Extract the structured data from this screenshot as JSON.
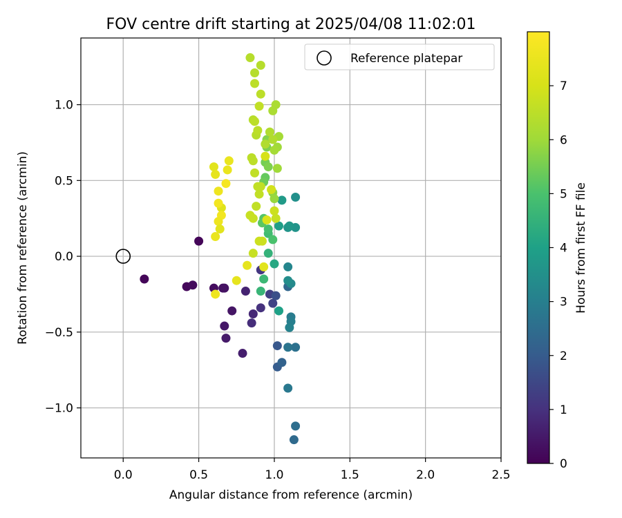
{
  "chart_data": {
    "type": "scatter",
    "title": "FOV centre drift starting at 2025/04/08 11:02:01",
    "xlabel": "Angular distance from reference (arcmin)",
    "ylabel": "Rotation from reference (arcmin)",
    "xlim": [
      -0.28,
      2.5
    ],
    "ylim": [
      -1.33,
      1.44
    ],
    "xticks": [
      0.0,
      0.5,
      1.0,
      1.5,
      2.0,
      2.5
    ],
    "xtick_labels": [
      "0.0",
      "0.5",
      "1.0",
      "1.5",
      "2.0",
      "2.5"
    ],
    "yticks": [
      -1.0,
      -0.5,
      0.0,
      0.5,
      1.0
    ],
    "ytick_labels": [
      "−1.0",
      "−0.5",
      "0.0",
      "0.5",
      "1.0"
    ],
    "grid": true,
    "legend": {
      "position": "top-right",
      "entries": [
        "Reference platepar"
      ]
    },
    "reference_point": {
      "x": 0.0,
      "y": 0.0
    },
    "colorbar": {
      "label": "Hours from first FF file",
      "colormap": "viridis",
      "range": [
        0,
        8
      ],
      "ticks": [
        0,
        1,
        2,
        3,
        4,
        5,
        6,
        7
      ],
      "tick_labels": [
        "0",
        "1",
        "2",
        "3",
        "4",
        "5",
        "6",
        "7"
      ]
    },
    "series": [
      {
        "color_by": "hours",
        "points": [
          {
            "x": 0.5,
            "y": 0.1,
            "c": 0.1
          },
          {
            "x": 0.14,
            "y": -0.15,
            "c": 0.1
          },
          {
            "x": 0.42,
            "y": -0.2,
            "c": 0.15
          },
          {
            "x": 0.46,
            "y": -0.19,
            "c": 0.2
          },
          {
            "x": 0.6,
            "y": -0.21,
            "c": 0.25
          },
          {
            "x": 0.66,
            "y": -0.21,
            "c": 0.3
          },
          {
            "x": 0.67,
            "y": -0.21,
            "c": 0.35
          },
          {
            "x": 0.72,
            "y": -0.36,
            "c": 0.4
          },
          {
            "x": 0.67,
            "y": -0.46,
            "c": 0.45
          },
          {
            "x": 0.68,
            "y": -0.54,
            "c": 0.5
          },
          {
            "x": 0.79,
            "y": -0.64,
            "c": 0.6
          },
          {
            "x": 0.81,
            "y": -0.23,
            "c": 0.7
          },
          {
            "x": 0.86,
            "y": -0.38,
            "c": 0.8
          },
          {
            "x": 0.85,
            "y": -0.44,
            "c": 0.9
          },
          {
            "x": 0.91,
            "y": -0.34,
            "c": 1.0
          },
          {
            "x": 0.91,
            "y": -0.09,
            "c": 1.1
          },
          {
            "x": 0.97,
            "y": -0.25,
            "c": 1.3
          },
          {
            "x": 0.99,
            "y": -0.31,
            "c": 1.4
          },
          {
            "x": 1.01,
            "y": -0.26,
            "c": 1.7
          },
          {
            "x": 1.02,
            "y": -0.59,
            "c": 1.9
          },
          {
            "x": 1.02,
            "y": -0.73,
            "c": 2.0
          },
          {
            "x": 1.05,
            "y": -0.7,
            "c": 2.2
          },
          {
            "x": 1.09,
            "y": -0.2,
            "c": 2.3
          },
          {
            "x": 1.13,
            "y": -1.21,
            "c": 2.4
          },
          {
            "x": 1.14,
            "y": -1.12,
            "c": 2.5
          },
          {
            "x": 1.14,
            "y": -0.6,
            "c": 2.6
          },
          {
            "x": 1.09,
            "y": -0.6,
            "c": 2.7
          },
          {
            "x": 1.09,
            "y": -0.87,
            "c": 2.8
          },
          {
            "x": 1.11,
            "y": -0.4,
            "c": 2.9
          },
          {
            "x": 1.11,
            "y": -0.43,
            "c": 3.0
          },
          {
            "x": 1.1,
            "y": -0.47,
            "c": 3.1
          },
          {
            "x": 1.09,
            "y": -0.07,
            "c": 3.2
          },
          {
            "x": 1.11,
            "y": -0.18,
            "c": 3.3
          },
          {
            "x": 1.09,
            "y": -0.16,
            "c": 3.4
          },
          {
            "x": 1.14,
            "y": 0.39,
            "c": 3.5
          },
          {
            "x": 1.14,
            "y": 0.19,
            "c": 3.6
          },
          {
            "x": 1.09,
            "y": 0.19,
            "c": 3.6
          },
          {
            "x": 1.1,
            "y": 0.2,
            "c": 3.7
          },
          {
            "x": 1.05,
            "y": 0.37,
            "c": 3.8
          },
          {
            "x": 1.03,
            "y": 0.2,
            "c": 3.9
          },
          {
            "x": 1.03,
            "y": -0.36,
            "c": 4.0
          },
          {
            "x": 1.0,
            "y": -0.05,
            "c": 4.2
          },
          {
            "x": 0.96,
            "y": 0.02,
            "c": 4.5
          },
          {
            "x": 0.91,
            "y": -0.23,
            "c": 4.6
          },
          {
            "x": 0.93,
            "y": -0.15,
            "c": 4.7
          },
          {
            "x": 0.96,
            "y": 0.15,
            "c": 4.8
          },
          {
            "x": 0.96,
            "y": 0.18,
            "c": 4.9
          },
          {
            "x": 0.99,
            "y": 0.11,
            "c": 5.0
          },
          {
            "x": 0.93,
            "y": 0.25,
            "c": 5.1
          },
          {
            "x": 0.92,
            "y": 0.22,
            "c": 5.2
          },
          {
            "x": 0.94,
            "y": 0.52,
            "c": 5.3
          },
          {
            "x": 0.93,
            "y": 0.49,
            "c": 5.4
          },
          {
            "x": 0.94,
            "y": 0.62,
            "c": 5.5
          },
          {
            "x": 0.96,
            "y": 0.59,
            "c": 5.6
          },
          {
            "x": 0.95,
            "y": 0.72,
            "c": 5.6
          },
          {
            "x": 0.95,
            "y": 0.77,
            "c": 5.7
          },
          {
            "x": 0.99,
            "y": 0.42,
            "c": 5.8
          },
          {
            "x": 1.0,
            "y": 0.38,
            "c": 5.9
          },
          {
            "x": 1.02,
            "y": 0.58,
            "c": 6.0
          },
          {
            "x": 1.02,
            "y": 0.72,
            "c": 6.0
          },
          {
            "x": 1.03,
            "y": 0.79,
            "c": 6.1
          },
          {
            "x": 1.0,
            "y": 0.7,
            "c": 6.1
          },
          {
            "x": 1.01,
            "y": 1.0,
            "c": 6.2
          },
          {
            "x": 0.99,
            "y": 0.96,
            "c": 6.2
          },
          {
            "x": 0.97,
            "y": 0.82,
            "c": 6.3
          },
          {
            "x": 0.99,
            "y": 0.77,
            "c": 6.3
          },
          {
            "x": 0.94,
            "y": 0.74,
            "c": 6.3
          },
          {
            "x": 0.86,
            "y": 0.9,
            "c": 6.4
          },
          {
            "x": 0.88,
            "y": 0.8,
            "c": 6.4
          },
          {
            "x": 0.89,
            "y": 0.83,
            "c": 6.5
          },
          {
            "x": 0.85,
            "y": 0.65,
            "c": 6.5
          },
          {
            "x": 0.86,
            "y": 0.63,
            "c": 6.5
          },
          {
            "x": 0.87,
            "y": 0.55,
            "c": 6.6
          },
          {
            "x": 0.89,
            "y": 0.46,
            "c": 6.6
          },
          {
            "x": 0.9,
            "y": 0.41,
            "c": 6.6
          },
          {
            "x": 0.88,
            "y": 0.33,
            "c": 6.6
          },
          {
            "x": 0.84,
            "y": 0.27,
            "c": 6.7
          },
          {
            "x": 0.86,
            "y": 0.25,
            "c": 6.7
          },
          {
            "x": 0.86,
            "y": 0.02,
            "c": 6.7
          },
          {
            "x": 0.9,
            "y": 0.1,
            "c": 6.8
          },
          {
            "x": 0.92,
            "y": 0.1,
            "c": 6.8
          },
          {
            "x": 1.0,
            "y": 0.3,
            "c": 6.8
          },
          {
            "x": 1.01,
            "y": 0.25,
            "c": 6.7
          },
          {
            "x": 0.9,
            "y": 0.99,
            "c": 6.6
          },
          {
            "x": 0.91,
            "y": 1.07,
            "c": 6.5
          },
          {
            "x": 0.87,
            "y": 1.14,
            "c": 6.5
          },
          {
            "x": 0.87,
            "y": 1.21,
            "c": 6.4
          },
          {
            "x": 0.91,
            "y": 1.26,
            "c": 6.4
          },
          {
            "x": 0.84,
            "y": 1.31,
            "c": 6.4
          },
          {
            "x": 0.87,
            "y": 0.89,
            "c": 6.5
          },
          {
            "x": 0.91,
            "y": 0.46,
            "c": 6.6
          },
          {
            "x": 0.98,
            "y": 0.44,
            "c": 6.9
          },
          {
            "x": 0.95,
            "y": 0.24,
            "c": 7.1
          },
          {
            "x": 0.94,
            "y": 0.66,
            "c": 7.0
          },
          {
            "x": 0.93,
            "y": -0.07,
            "c": 7.3
          },
          {
            "x": 0.82,
            "y": -0.06,
            "c": 7.4
          },
          {
            "x": 0.75,
            "y": -0.16,
            "c": 7.4
          },
          {
            "x": 0.61,
            "y": -0.25,
            "c": 7.6
          },
          {
            "x": 0.6,
            "y": 0.59,
            "c": 7.3
          },
          {
            "x": 0.61,
            "y": 0.54,
            "c": 7.4
          },
          {
            "x": 0.7,
            "y": 0.63,
            "c": 7.5
          },
          {
            "x": 0.69,
            "y": 0.57,
            "c": 7.5
          },
          {
            "x": 0.68,
            "y": 0.48,
            "c": 7.8
          },
          {
            "x": 0.63,
            "y": 0.43,
            "c": 7.6
          },
          {
            "x": 0.65,
            "y": 0.32,
            "c": 7.2
          },
          {
            "x": 0.63,
            "y": 0.35,
            "c": 7.7
          },
          {
            "x": 0.65,
            "y": 0.27,
            "c": 7.7
          },
          {
            "x": 0.63,
            "y": 0.23,
            "c": 7.6
          },
          {
            "x": 0.64,
            "y": 0.18,
            "c": 7.3
          },
          {
            "x": 0.61,
            "y": 0.13,
            "c": 7.5
          }
        ]
      }
    ]
  }
}
